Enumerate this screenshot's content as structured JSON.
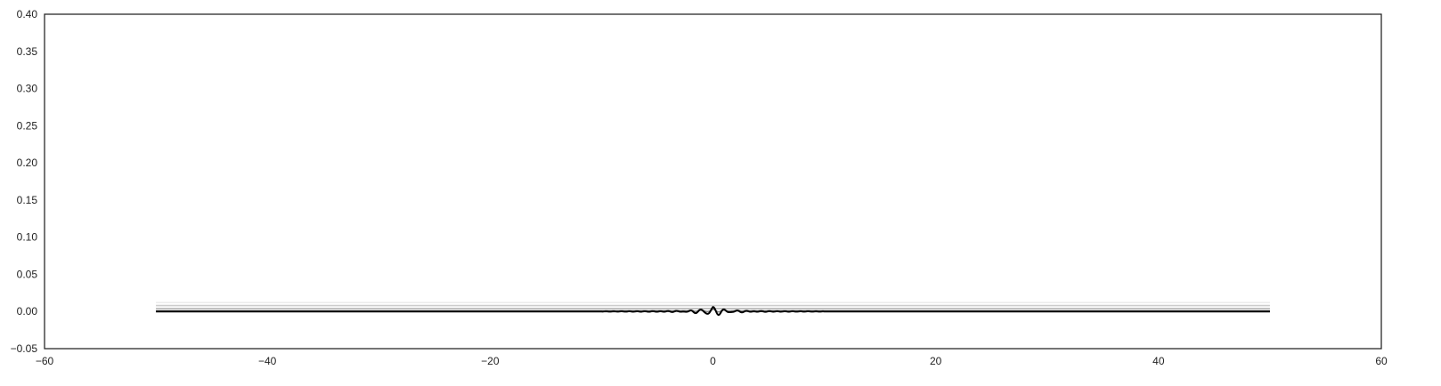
{
  "chart_data": {
    "type": "line",
    "title": "",
    "xlabel": "",
    "ylabel": "",
    "xlim": [
      -60,
      60
    ],
    "ylim": [
      -0.05,
      0.4
    ],
    "xticks": [
      -60,
      -40,
      -20,
      0,
      20,
      40,
      60
    ],
    "xtick_labels": [
      "−60",
      "−40",
      "−20",
      "0",
      "20",
      "40",
      "60"
    ],
    "yticks": [
      -0.05,
      0.0,
      0.05,
      0.1,
      0.15,
      0.2,
      0.25,
      0.3,
      0.35,
      0.4
    ],
    "ytick_labels": [
      "−0.05",
      "0.00",
      "0.05",
      "0.10",
      "0.15",
      "0.20",
      "0.25",
      "0.30",
      "0.35",
      "0.40"
    ],
    "grid": false,
    "x_range": [
      -50,
      50
    ],
    "series": [
      {
        "color": "#ececec",
        "baseline": 0.012,
        "wiggle": 0.0
      },
      {
        "color": "#cccccc",
        "baseline": 0.008,
        "wiggle": 0.0
      },
      {
        "color": "#b0b0b0",
        "baseline": 0.004,
        "wiggle": 0.0
      },
      {
        "color": "#888888",
        "baseline": 0.001,
        "wiggle": 0.002
      },
      {
        "color": "#000000",
        "baseline": 0.0,
        "wiggle": 0.006
      }
    ]
  }
}
